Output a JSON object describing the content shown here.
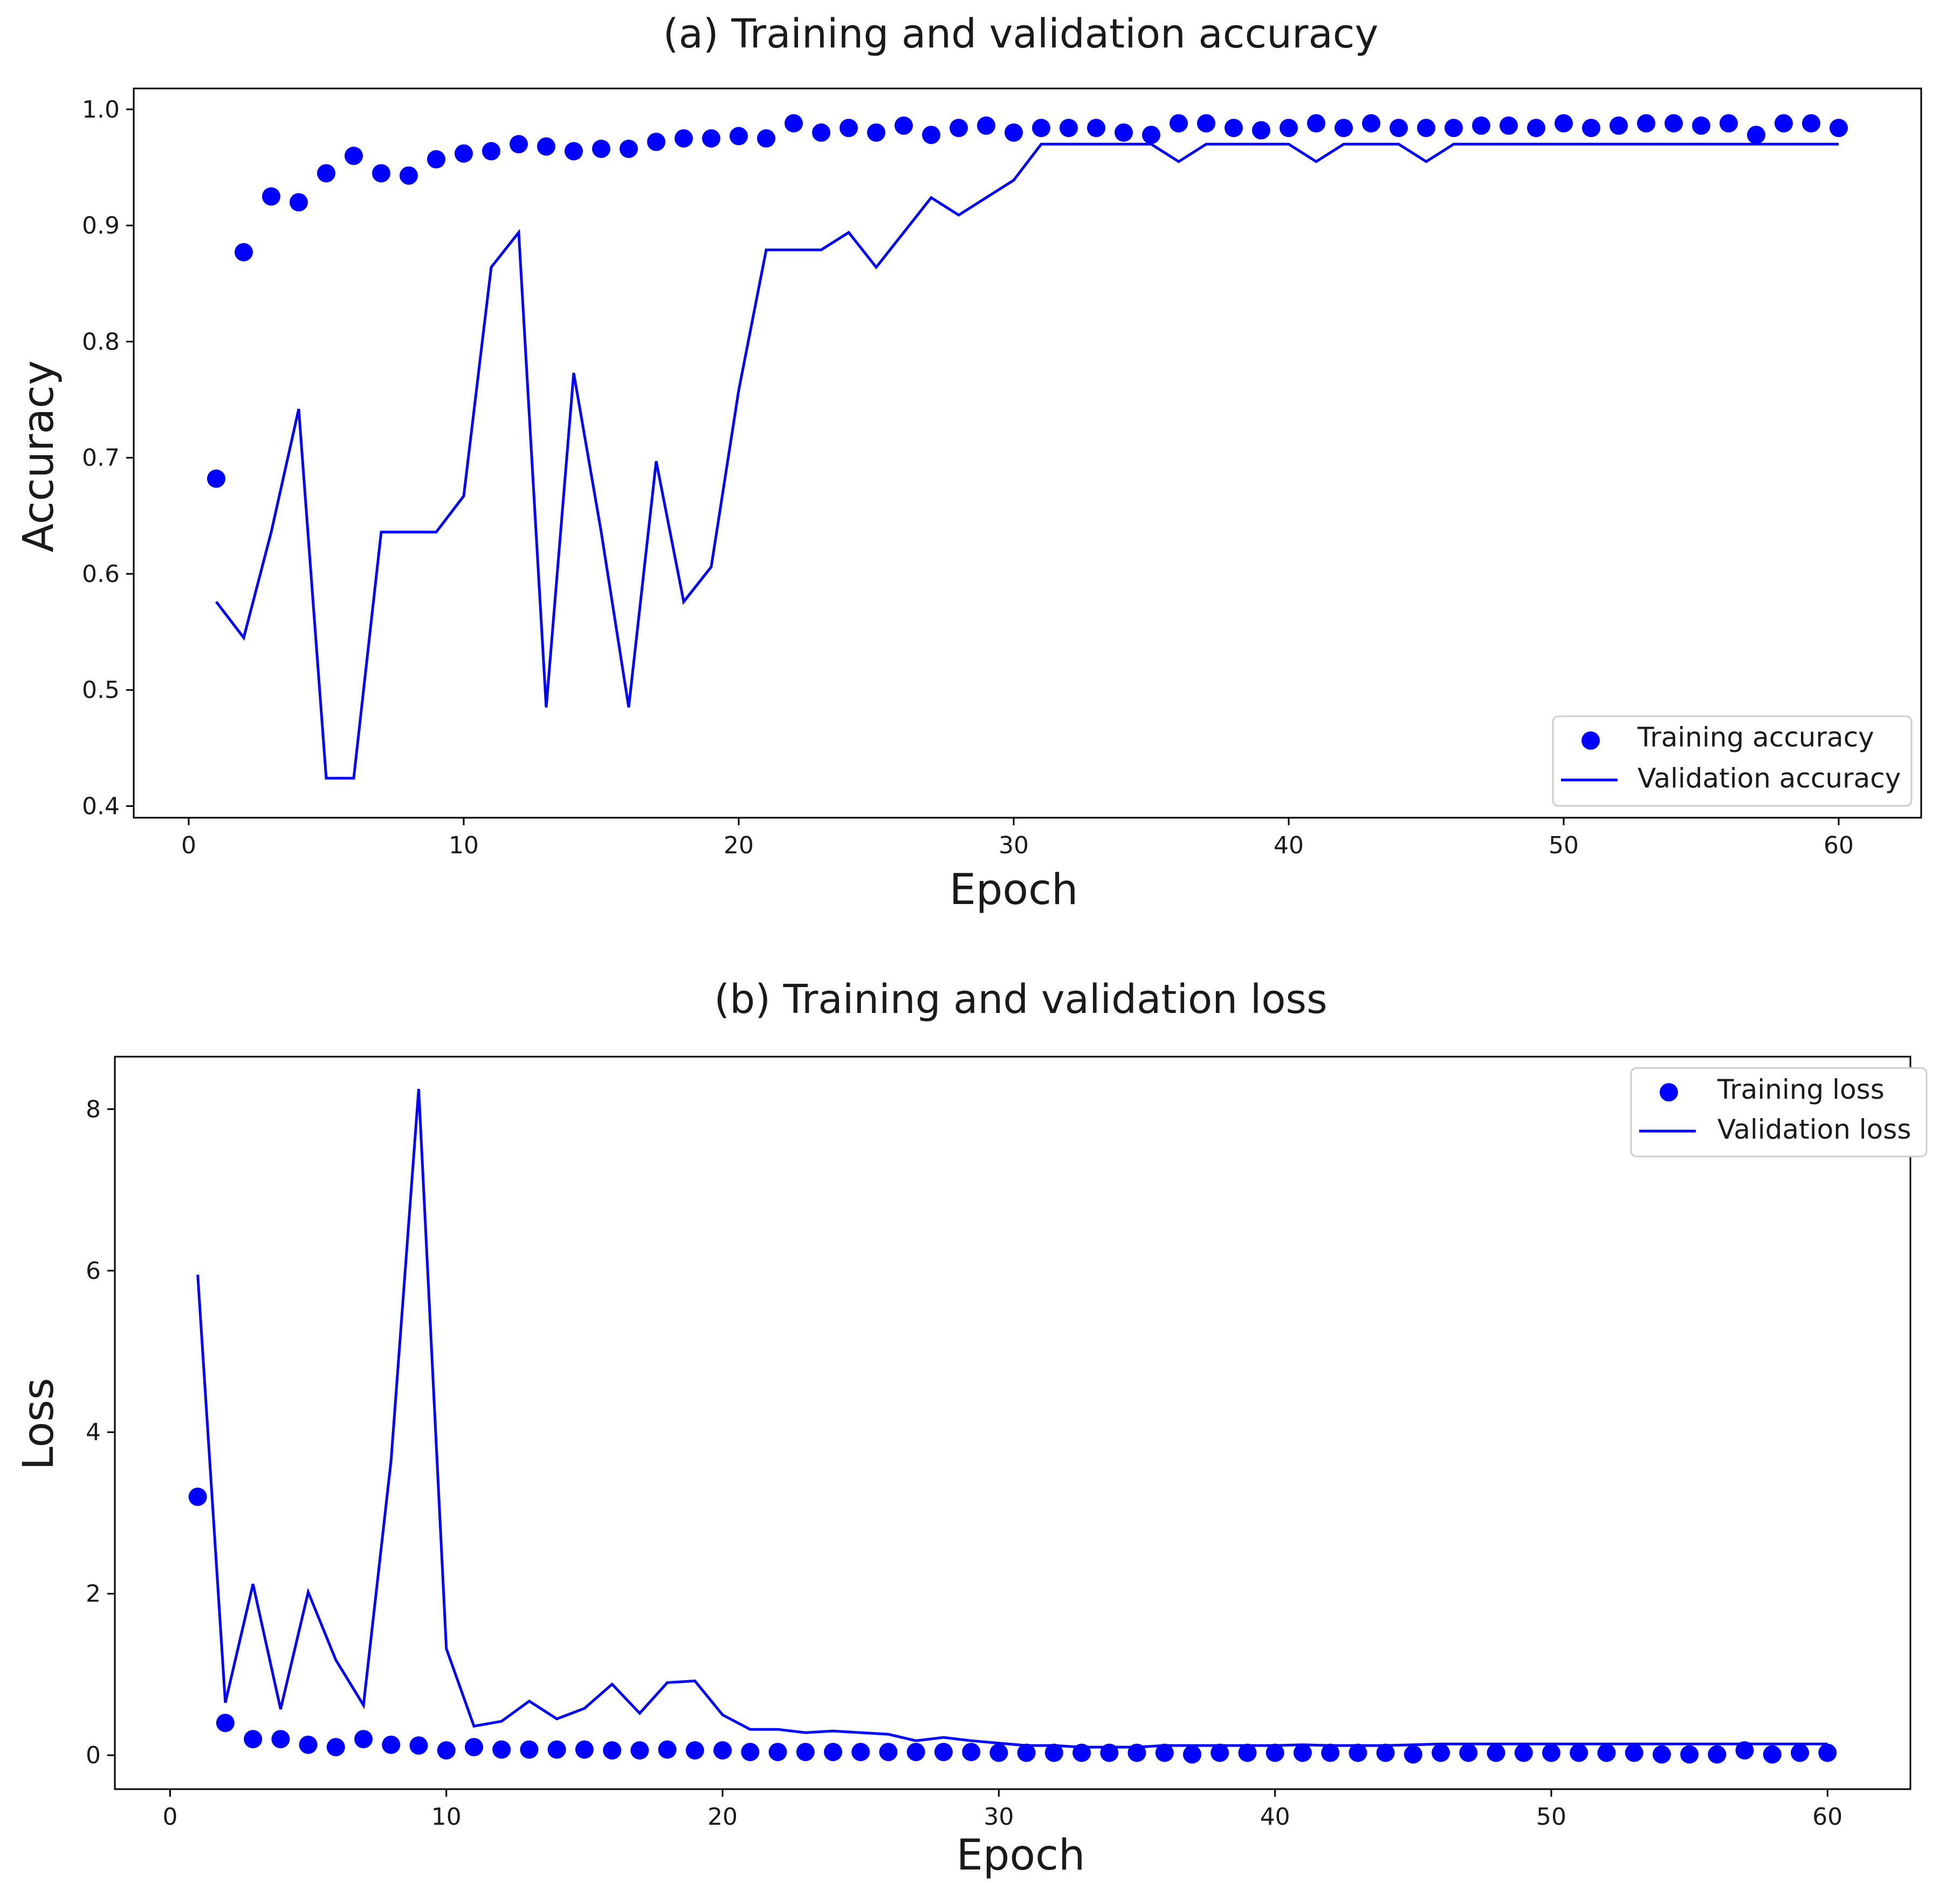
{
  "chart_data": [
    {
      "type": "line",
      "title": "(a) Training and validation accuracy",
      "xlabel": "Epoch",
      "ylabel": "Accuracy",
      "xlim": [
        -2,
        63
      ],
      "ylim": [
        0.39,
        1.018
      ],
      "xticks": [
        0,
        10,
        20,
        30,
        40,
        50,
        60
      ],
      "yticks": [
        0.4,
        0.5,
        0.6,
        0.7,
        0.8,
        0.9,
        1.0
      ],
      "ytick_labels": [
        "0.4",
        "0.5",
        "0.6",
        "0.7",
        "0.8",
        "0.9",
        "1.0"
      ],
      "legend_position": "bottom-right",
      "color": "#0000ff",
      "series": [
        {
          "name": "Training accuracy",
          "style": "markers",
          "x": [
            1,
            2,
            3,
            4,
            5,
            6,
            7,
            8,
            9,
            10,
            11,
            12,
            13,
            14,
            15,
            16,
            17,
            18,
            19,
            20,
            21,
            22,
            23,
            24,
            25,
            26,
            27,
            28,
            29,
            30,
            31,
            32,
            33,
            34,
            35,
            36,
            37,
            38,
            39,
            40,
            41,
            42,
            43,
            44,
            45,
            46,
            47,
            48,
            49,
            50,
            51,
            52,
            53,
            54,
            55,
            56,
            57,
            58,
            59,
            60
          ],
          "values": [
            0.682,
            0.877,
            0.925,
            0.92,
            0.945,
            0.96,
            0.945,
            0.943,
            0.957,
            0.962,
            0.964,
            0.97,
            0.968,
            0.964,
            0.966,
            0.966,
            0.972,
            0.975,
            0.975,
            0.977,
            0.975,
            0.988,
            0.98,
            0.984,
            0.98,
            0.986,
            0.978,
            0.984,
            0.986,
            0.98,
            0.984,
            0.984,
            0.984,
            0.98,
            0.978,
            0.988,
            0.988,
            0.984,
            0.982,
            0.984,
            0.988,
            0.984,
            0.988,
            0.984,
            0.984,
            0.984,
            0.986,
            0.986,
            0.984,
            0.988,
            0.984,
            0.986,
            0.988,
            0.988,
            0.986,
            0.988,
            0.978,
            0.988,
            0.988,
            0.984
          ]
        },
        {
          "name": "Validation accuracy",
          "style": "line",
          "x": [
            1,
            2,
            3,
            4,
            5,
            6,
            7,
            8,
            9,
            10,
            11,
            12,
            13,
            14,
            15,
            16,
            17,
            18,
            19,
            20,
            21,
            22,
            23,
            24,
            25,
            26,
            27,
            28,
            29,
            30,
            31,
            32,
            33,
            34,
            35,
            36,
            37,
            38,
            39,
            40,
            41,
            42,
            43,
            44,
            45,
            46,
            47,
            48,
            49,
            50,
            51,
            52,
            53,
            54,
            55,
            56,
            57,
            58,
            59,
            60
          ],
          "values": [
            0.576,
            0.545,
            0.636,
            0.742,
            0.424,
            0.424,
            0.636,
            0.636,
            0.636,
            0.667,
            0.864,
            0.894,
            0.485,
            0.773,
            0.636,
            0.485,
            0.697,
            0.576,
            0.606,
            0.758,
            0.879,
            0.879,
            0.879,
            0.894,
            0.864,
            0.894,
            0.924,
            0.909,
            0.924,
            0.939,
            0.97,
            0.97,
            0.97,
            0.97,
            0.97,
            0.955,
            0.97,
            0.97,
            0.97,
            0.97,
            0.955,
            0.97,
            0.97,
            0.97,
            0.955,
            0.97,
            0.97,
            0.97,
            0.97,
            0.97,
            0.97,
            0.97,
            0.97,
            0.97,
            0.97,
            0.97,
            0.97,
            0.97,
            0.97,
            0.97
          ]
        }
      ]
    },
    {
      "type": "line",
      "title": "(b) Training and validation loss",
      "xlabel": "Epoch",
      "ylabel": "Loss",
      "xlim": [
        -2,
        63
      ],
      "ylim": [
        -0.42,
        8.65
      ],
      "xticks": [
        0,
        10,
        20,
        30,
        40,
        50,
        60
      ],
      "yticks": [
        0,
        2,
        4,
        6,
        8
      ],
      "ytick_labels": [
        "0",
        "2",
        "4",
        "6",
        "8"
      ],
      "legend_position": "top-right",
      "color": "#0000ff",
      "series": [
        {
          "name": "Training loss",
          "style": "markers",
          "x": [
            1,
            2,
            3,
            4,
            5,
            6,
            7,
            8,
            9,
            10,
            11,
            12,
            13,
            14,
            15,
            16,
            17,
            18,
            19,
            20,
            21,
            22,
            23,
            24,
            25,
            26,
            27,
            28,
            29,
            30,
            31,
            32,
            33,
            34,
            35,
            36,
            37,
            38,
            39,
            40,
            41,
            42,
            43,
            44,
            45,
            46,
            47,
            48,
            49,
            50,
            51,
            52,
            53,
            54,
            55,
            56,
            57,
            58,
            59,
            60
          ],
          "values": [
            3.2,
            0.4,
            0.2,
            0.2,
            0.13,
            0.1,
            0.2,
            0.13,
            0.12,
            0.06,
            0.1,
            0.07,
            0.07,
            0.07,
            0.07,
            0.06,
            0.06,
            0.07,
            0.06,
            0.06,
            0.04,
            0.04,
            0.04,
            0.04,
            0.04,
            0.04,
            0.04,
            0.04,
            0.04,
            0.03,
            0.03,
            0.03,
            0.03,
            0.03,
            0.03,
            0.03,
            0.01,
            0.03,
            0.03,
            0.03,
            0.03,
            0.03,
            0.03,
            0.03,
            0.01,
            0.03,
            0.03,
            0.03,
            0.03,
            0.03,
            0.03,
            0.03,
            0.03,
            0.01,
            0.01,
            0.01,
            0.06,
            0.01,
            0.03,
            0.03
          ]
        },
        {
          "name": "Validation loss",
          "style": "line",
          "x": [
            1,
            2,
            3,
            4,
            5,
            6,
            7,
            8,
            9,
            10,
            11,
            12,
            13,
            14,
            15,
            16,
            17,
            18,
            19,
            20,
            21,
            22,
            23,
            24,
            25,
            26,
            27,
            28,
            29,
            30,
            31,
            32,
            33,
            34,
            35,
            36,
            37,
            38,
            39,
            40,
            41,
            42,
            43,
            44,
            45,
            46,
            47,
            48,
            49,
            50,
            51,
            52,
            53,
            54,
            55,
            56,
            57,
            58,
            59,
            60
          ],
          "values": [
            5.95,
            0.65,
            2.12,
            0.57,
            2.02,
            1.18,
            0.62,
            3.65,
            8.25,
            1.32,
            0.36,
            0.42,
            0.67,
            0.45,
            0.58,
            0.88,
            0.52,
            0.9,
            0.92,
            0.5,
            0.32,
            0.32,
            0.28,
            0.3,
            0.28,
            0.26,
            0.18,
            0.22,
            0.18,
            0.15,
            0.12,
            0.12,
            0.1,
            0.1,
            0.1,
            0.12,
            0.12,
            0.12,
            0.12,
            0.12,
            0.13,
            0.12,
            0.12,
            0.12,
            0.13,
            0.14,
            0.14,
            0.14,
            0.14,
            0.14,
            0.14,
            0.14,
            0.14,
            0.14,
            0.14,
            0.14,
            0.14,
            0.14,
            0.14,
            0.14
          ]
        }
      ]
    }
  ]
}
